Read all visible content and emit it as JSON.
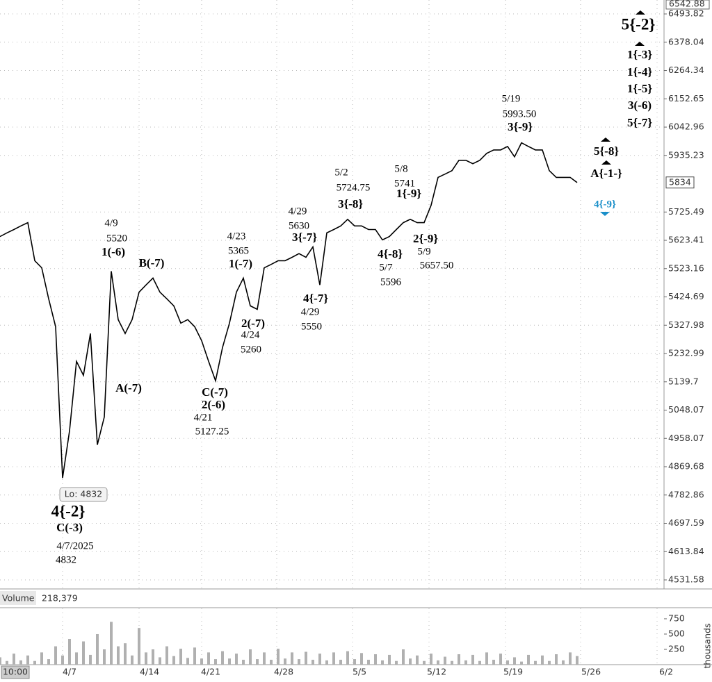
{
  "chart_data": {
    "type": "line",
    "color": "#000000",
    "log_scale": true,
    "grid": true,
    "ylim": [
      4531.58,
      6542.88
    ],
    "yticks": [
      6493.82,
      6378.04,
      6264.34,
      6152.65,
      6042.96,
      5935.23,
      5725.49,
      5623.41,
      5523.16,
      5424.69,
      5327.98,
      5232.99,
      5139.7,
      5048.07,
      4958.07,
      4869.68,
      4782.86,
      4697.59,
      4613.84,
      4531.58
    ],
    "values": [
      5637,
      5650,
      5662,
      5675,
      5687,
      5551,
      5526,
      5418,
      5323,
      4835,
      4982,
      5207,
      5161,
      5300,
      4938,
      5026,
      5514,
      5347,
      5300,
      5347,
      5441,
      5466,
      5490,
      5441,
      5418,
      5394,
      5335,
      5347,
      5323,
      5276,
      5207,
      5143,
      5253,
      5335,
      5441,
      5490,
      5394,
      5382,
      5526,
      5538,
      5551,
      5551,
      5563,
      5576,
      5563,
      5600,
      5466,
      5650,
      5662,
      5675,
      5699,
      5675,
      5675,
      5662,
      5662,
      5625,
      5637,
      5662,
      5687,
      5699,
      5687,
      5687,
      5750,
      5853,
      5865,
      5878,
      5917,
      5917,
      5904,
      5917,
      5943,
      5956,
      5956,
      5969,
      5930,
      5983,
      5969,
      5956,
      5956,
      5878,
      5853,
      5853,
      5853,
      5834
    ],
    "last_price": 5834,
    "low_label": "Lo: 4832",
    "xtick_labels": [
      "10:00",
      "4/7",
      "4/14",
      "4/21",
      "4/28",
      "5/5",
      "5/12",
      "5/19",
      "5/26",
      "6/2"
    ],
    "annotations": [
      "4/9",
      "5520",
      "1(-6)",
      "B(-7)",
      "A(-7)",
      "4{-2}",
      "C(-3)",
      "4/7/2025",
      "4832",
      "4/23",
      "5365",
      "1(-7)",
      "2(-7)",
      "4/24",
      "5260",
      "C(-7)",
      "2(-6)",
      "4/21",
      "5127.25",
      "4/29",
      "5630",
      "3{-7}",
      "4{-7}",
      "4/29",
      "5550",
      "5/2",
      "5724.75",
      "3{-8}",
      "5/8",
      "5741",
      "1{-9}",
      "4{-8}",
      "5/7",
      "5596",
      "2{-9}",
      "5/9",
      "5657.50",
      "5/19",
      "5993.50",
      "3{-9}",
      "5{-2}",
      "1{-3}",
      "1{-4}",
      "1{-5}",
      "3(-6)",
      "5{-7}",
      "5{-8}",
      "A{-1-}",
      "4{-9}"
    ],
    "volume": {
      "label": "Volume",
      "last": "218,379",
      "unit_label": "thousands",
      "color": "#b0b0b0",
      "ylim": [
        0,
        920
      ],
      "yticks": [
        750,
        500,
        250
      ],
      "values": [
        120,
        60,
        180,
        70,
        150,
        60,
        200,
        90,
        300,
        150,
        420,
        200,
        380,
        160,
        500,
        250,
        700,
        300,
        350,
        150,
        600,
        200,
        250,
        120,
        300,
        140,
        260,
        110,
        280,
        100,
        200,
        90,
        220,
        100,
        180,
        80,
        250,
        90,
        200,
        80,
        260,
        100,
        200,
        90,
        210,
        80,
        180,
        70,
        200,
        80,
        220,
        90,
        190,
        80,
        170,
        70,
        160,
        60,
        250,
        100,
        150,
        60,
        180,
        70,
        130,
        60,
        170,
        70,
        160,
        60,
        200,
        80,
        180,
        70,
        120,
        50,
        160,
        60,
        150,
        60,
        170,
        70,
        200,
        140
      ]
    }
  }
}
